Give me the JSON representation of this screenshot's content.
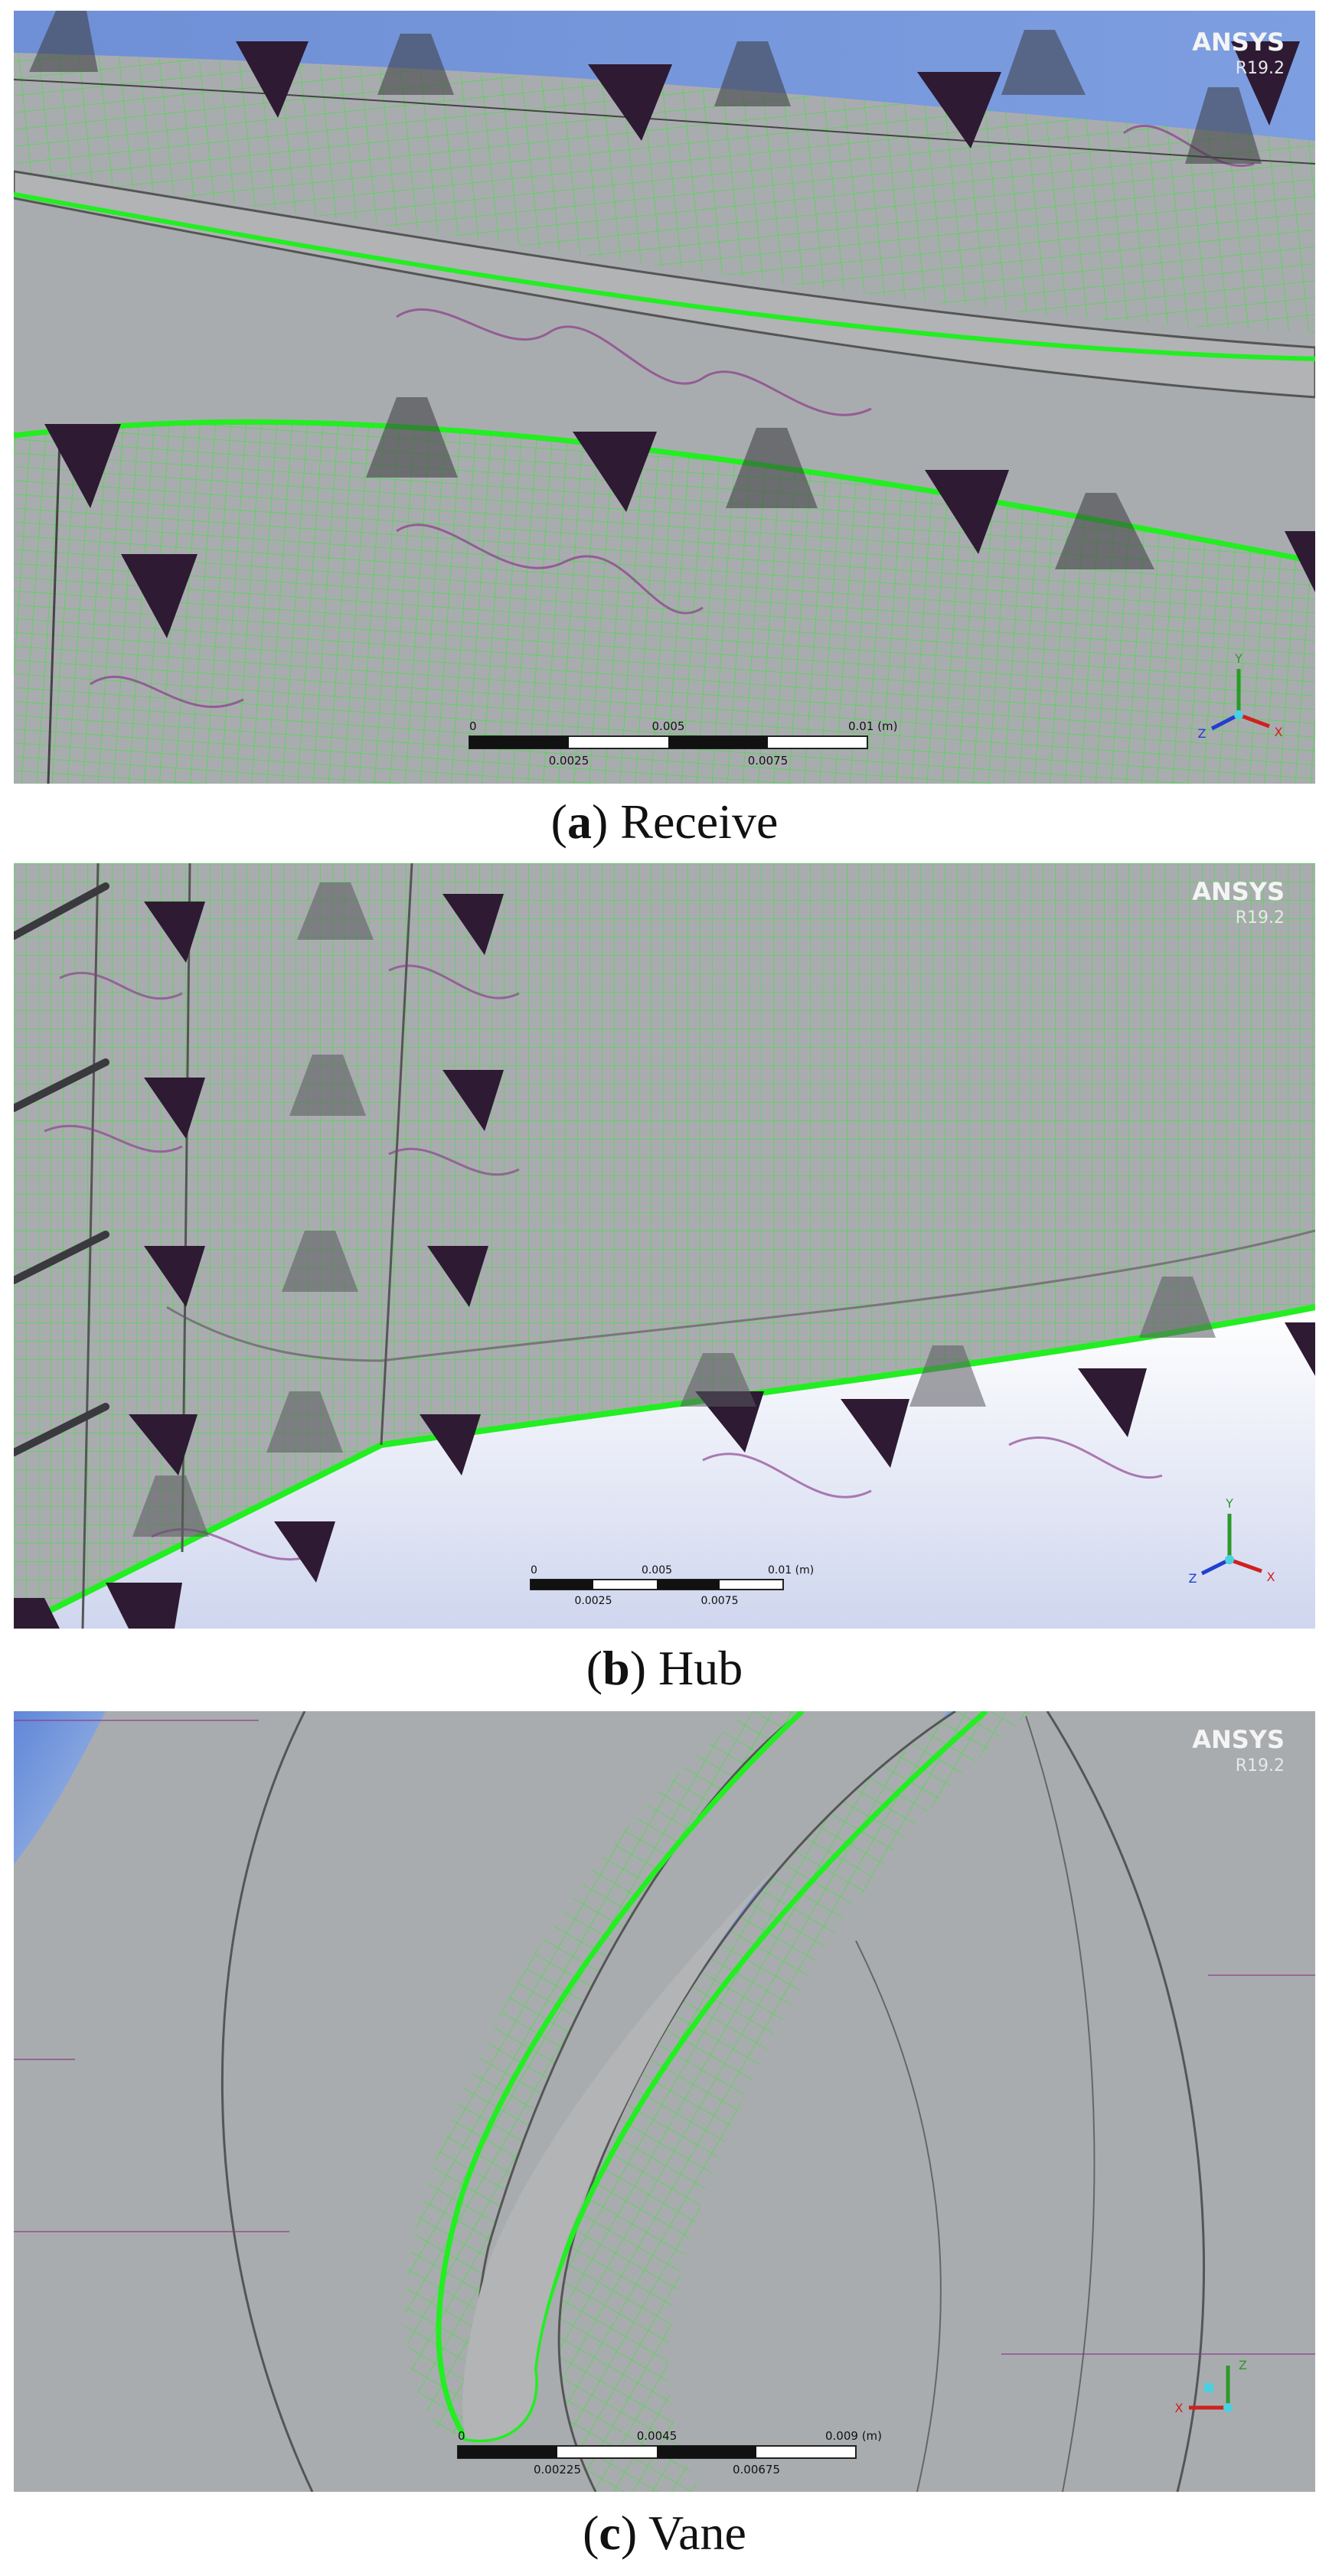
{
  "figure": {
    "panels": [
      {
        "id": "a",
        "letter": "a",
        "name": "Receive",
        "brand": "ANSYS",
        "version": "R19.2",
        "scale_top": [
          "0",
          "0.005",
          "0.01 (m)"
        ],
        "scale_bottom": [
          "0.0025",
          "0.0075"
        ],
        "axes": [
          "Y",
          "Z",
          "X"
        ]
      },
      {
        "id": "b",
        "letter": "b",
        "name": "Hub",
        "brand": "ANSYS",
        "version": "R19.2",
        "scale_top": [
          "0",
          "0.005",
          "0.01 (m)"
        ],
        "scale_bottom": [
          "0.0025",
          "0.0075"
        ],
        "axes": [
          "Y",
          "Z",
          "X"
        ]
      },
      {
        "id": "c",
        "letter": "c",
        "name": "Vane",
        "brand": "ANSYS",
        "version": "R19.2",
        "scale_top": [
          "0",
          "0.0045",
          "0.009 (m)"
        ],
        "scale_bottom": [
          "0.00225",
          "0.00675"
        ],
        "axes": [
          "Z",
          "X"
        ]
      }
    ]
  },
  "colors": {
    "mesh": "#3de23d",
    "edge": "#22ee22",
    "surface": "#a9acae",
    "sky": "#6f94d8",
    "marker": "#2e1a33",
    "purple_line": "#8a3c8c"
  }
}
